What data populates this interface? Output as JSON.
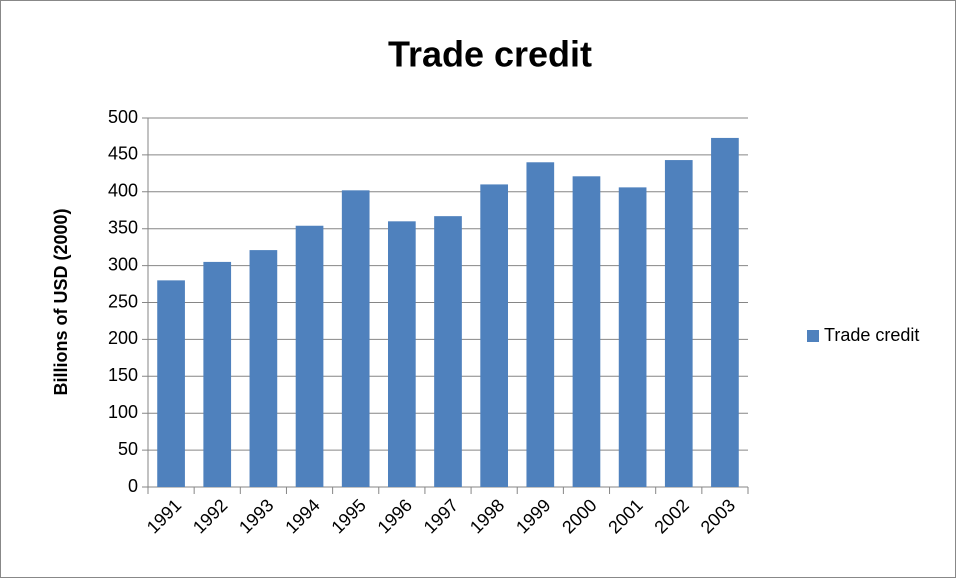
{
  "chart_data": {
    "type": "bar",
    "title": "Trade credit",
    "y_label": "Billions of USD (2000)",
    "categories": [
      "1991",
      "1992",
      "1993",
      "1994",
      "1995",
      "1996",
      "1997",
      "1998",
      "1999",
      "2000",
      "2001",
      "2002",
      "2003"
    ],
    "series": [
      {
        "name": "Trade credit",
        "color": "#4f81bd",
        "values": [
          280,
          305,
          321,
          354,
          402,
          360,
          367,
          410,
          440,
          421,
          406,
          443,
          473
        ]
      }
    ],
    "ylim": [
      0,
      500
    ],
    "yticks": [
      0,
      50,
      100,
      150,
      200,
      250,
      300,
      350,
      400,
      450,
      500
    ],
    "grid": true,
    "legend": "right"
  }
}
